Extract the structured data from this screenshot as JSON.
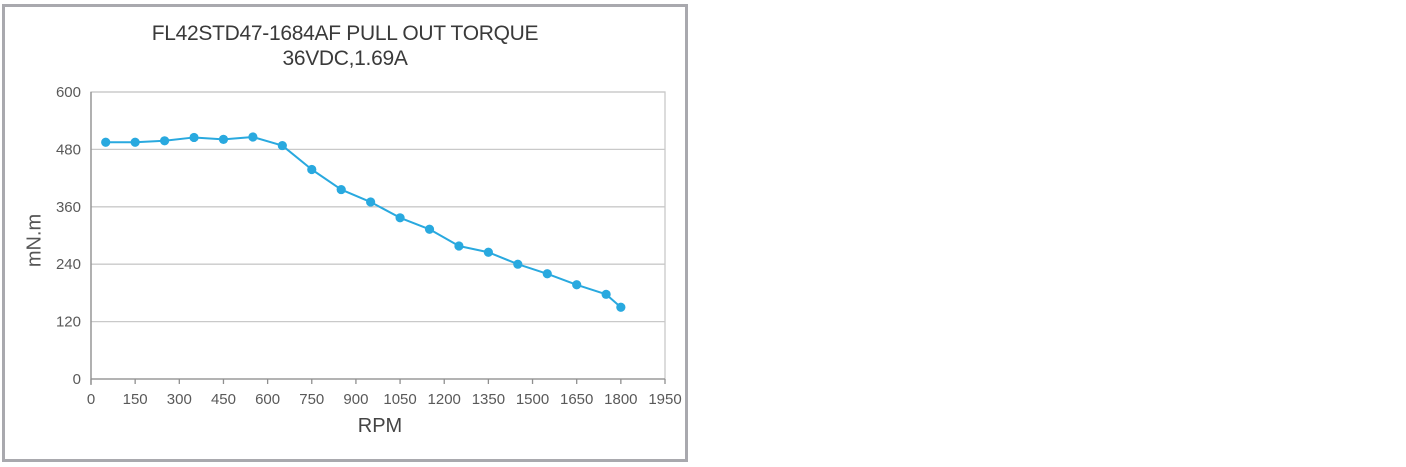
{
  "chart": {
    "title_line1": "FL42STD47-1684AF PULL OUT TORQUE",
    "title_line2": "36VDC,1.69A",
    "xlabel": "RPM",
    "ylabel": "mN.m"
  },
  "colors": {
    "series_blue": "#29a9df",
    "gridline": "#c9c9c9",
    "plot_border": "#c9c9c9",
    "axis_line": "#8f8f8f",
    "tick_text": "#595959",
    "title_text": "#3a3a3a",
    "frame_border": "#a9a9ae"
  },
  "chart_data": {
    "type": "line",
    "title": "FL42STD47-1684AF PULL OUT TORQUE",
    "subtitle": "36VDC,1.69A",
    "xlabel": "RPM",
    "ylabel": "mN.m",
    "xlim": [
      0,
      1950
    ],
    "ylim": [
      0,
      600
    ],
    "xticks": [
      0,
      150,
      300,
      450,
      600,
      750,
      900,
      1050,
      1200,
      1350,
      1500,
      1650,
      1800,
      1950
    ],
    "yticks": [
      0,
      120,
      240,
      360,
      480,
      600
    ],
    "grid": "horizontal-only",
    "legend_position": "none",
    "marker": "circle",
    "series": [
      {
        "name": "Pull out torque",
        "color": "#29a9df",
        "x": [
          50,
          150,
          250,
          350,
          450,
          550,
          650,
          750,
          850,
          950,
          1050,
          1150,
          1250,
          1350,
          1450,
          1550,
          1650,
          1750,
          1800
        ],
        "y": [
          495,
          495,
          498,
          505,
          501,
          506,
          488,
          438,
          396,
          370,
          337,
          313,
          278,
          265,
          240,
          220,
          197,
          177,
          150
        ]
      }
    ]
  }
}
